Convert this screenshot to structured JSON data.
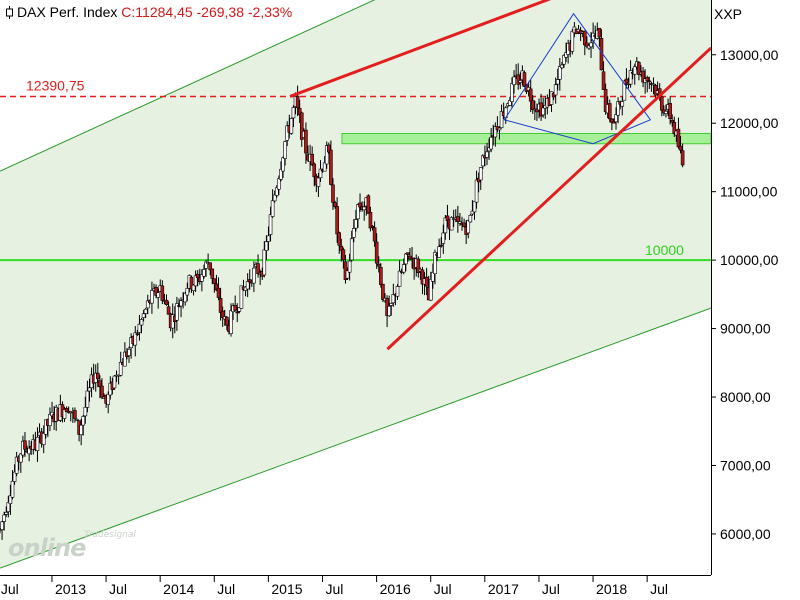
{
  "header": {
    "instrument": "DAX Perf. Index",
    "quote": "C:11284,45 -269,38 -2,33%",
    "symbol": "XXP"
  },
  "watermark": {
    "brand_small": "Tradesignal",
    "brand_main": "online"
  },
  "colors": {
    "channel_fill": "#e6f1e2",
    "channel_line": "#2b9a2b",
    "support_zone": "#a8ef9a",
    "horizontal_level": "#33dd22",
    "trend_red": "#e31e1e",
    "triangle_blue": "#1f3fcc",
    "candle_up": "#ffffff",
    "candle_down": "#b01818"
  },
  "chart_data": {
    "type": "candlestick",
    "title": "DAX Perf. Index",
    "last_quote": "C:11284,45 -269,38 -2,33%",
    "ylim": [
      5400,
      13800
    ],
    "y_ticks": [
      {
        "value": 6000,
        "label": "6000,00"
      },
      {
        "value": 7000,
        "label": "7000,00"
      },
      {
        "value": 8000,
        "label": "8000,00"
      },
      {
        "value": 9000,
        "label": "9000,00"
      },
      {
        "value": 10000,
        "label": "10000,00"
      },
      {
        "value": 11000,
        "label": "11000,00"
      },
      {
        "value": 12000,
        "label": "12000,00"
      },
      {
        "value": 13000,
        "label": "13000,00"
      }
    ],
    "x_ticks": [
      {
        "t": 2012.5,
        "label": "Jul"
      },
      {
        "t": 2013.0,
        "label": "2013"
      },
      {
        "t": 2013.5,
        "label": "Jul"
      },
      {
        "t": 2014.0,
        "label": "2014"
      },
      {
        "t": 2014.5,
        "label": "Jul"
      },
      {
        "t": 2015.0,
        "label": "2015"
      },
      {
        "t": 2015.5,
        "label": "Jul"
      },
      {
        "t": 2016.0,
        "label": "2016"
      },
      {
        "t": 2016.5,
        "label": "Jul"
      },
      {
        "t": 2017.0,
        "label": "2017"
      },
      {
        "t": 2017.5,
        "label": "Jul"
      },
      {
        "t": 2018.0,
        "label": "2018"
      },
      {
        "t": 2018.5,
        "label": "Jul"
      }
    ],
    "xlim": [
      2012.52,
      2019.09
    ],
    "price_path": [
      [
        2012.52,
        6050
      ],
      [
        2012.62,
        6700
      ],
      [
        2012.72,
        7250
      ],
      [
        2012.85,
        7300
      ],
      [
        2013.0,
        7700
      ],
      [
        2013.15,
        7900
      ],
      [
        2013.25,
        7500
      ],
      [
        2013.4,
        8400
      ],
      [
        2013.5,
        7900
      ],
      [
        2013.6,
        8400
      ],
      [
        2013.75,
        8800
      ],
      [
        2013.9,
        9400
      ],
      [
        2014.0,
        9600
      ],
      [
        2014.1,
        9100
      ],
      [
        2014.25,
        9650
      ],
      [
        2014.35,
        9700
      ],
      [
        2014.45,
        10000
      ],
      [
        2014.55,
        9300
      ],
      [
        2014.62,
        9000
      ],
      [
        2014.72,
        9400
      ],
      [
        2014.85,
        9800
      ],
      [
        2014.95,
        9900
      ],
      [
        2015.05,
        10900
      ],
      [
        2015.15,
        11700
      ],
      [
        2015.25,
        12300
      ],
      [
        2015.35,
        11600
      ],
      [
        2015.45,
        11200
      ],
      [
        2015.55,
        11600
      ],
      [
        2015.65,
        10200
      ],
      [
        2015.72,
        9700
      ],
      [
        2015.82,
        10800
      ],
      [
        2015.92,
        10800
      ],
      [
        2016.02,
        9900
      ],
      [
        2016.1,
        9100
      ],
      [
        2016.18,
        9600
      ],
      [
        2016.3,
        10100
      ],
      [
        2016.42,
        9800
      ],
      [
        2016.48,
        9400
      ],
      [
        2016.55,
        10100
      ],
      [
        2016.65,
        10600
      ],
      [
        2016.75,
        10500
      ],
      [
        2016.85,
        10500
      ],
      [
        2016.95,
        11300
      ],
      [
        2017.05,
        11800
      ],
      [
        2017.15,
        12100
      ],
      [
        2017.28,
        12600
      ],
      [
        2017.35,
        12700
      ],
      [
        2017.45,
        12300
      ],
      [
        2017.55,
        12200
      ],
      [
        2017.65,
        12500
      ],
      [
        2017.75,
        13000
      ],
      [
        2017.85,
        13400
      ],
      [
        2017.95,
        13200
      ],
      [
        2018.05,
        13300
      ],
      [
        2018.12,
        12200
      ],
      [
        2018.2,
        12000
      ],
      [
        2018.28,
        12500
      ],
      [
        2018.38,
        12900
      ],
      [
        2018.46,
        12700
      ],
      [
        2018.55,
        12600
      ],
      [
        2018.63,
        12300
      ],
      [
        2018.72,
        12100
      ],
      [
        2018.8,
        11600
      ],
      [
        2018.84,
        11284.45
      ]
    ],
    "levels": [
      {
        "name": "resistance-dashed",
        "value": 12390.75,
        "label": "12390,75"
      },
      {
        "name": "round-number",
        "value": 10000,
        "label": "10000"
      }
    ],
    "support_zone": {
      "low": 11700,
      "high": 11850,
      "from": 2015.68
    },
    "channel": {
      "upper": [
        [
          2012.52,
          11300
        ],
        [
          2019.09,
          16050
        ]
      ],
      "lower": [
        [
          2012.52,
          5500
        ],
        [
          2019.09,
          9300
        ]
      ]
    },
    "trendlines": [
      {
        "name": "upper-red-trend",
        "points": [
          [
            2015.2,
            12390.75
          ],
          [
            2019.09,
            14700
          ]
        ]
      },
      {
        "name": "rising-red-support",
        "points": [
          [
            2016.1,
            8700
          ],
          [
            2019.09,
            13100
          ]
        ]
      }
    ],
    "triangle": [
      [
        2017.18,
        12050
      ],
      [
        2017.82,
        13600
      ],
      [
        2018.53,
        12050
      ],
      [
        2018.0,
        11700
      ]
    ]
  }
}
